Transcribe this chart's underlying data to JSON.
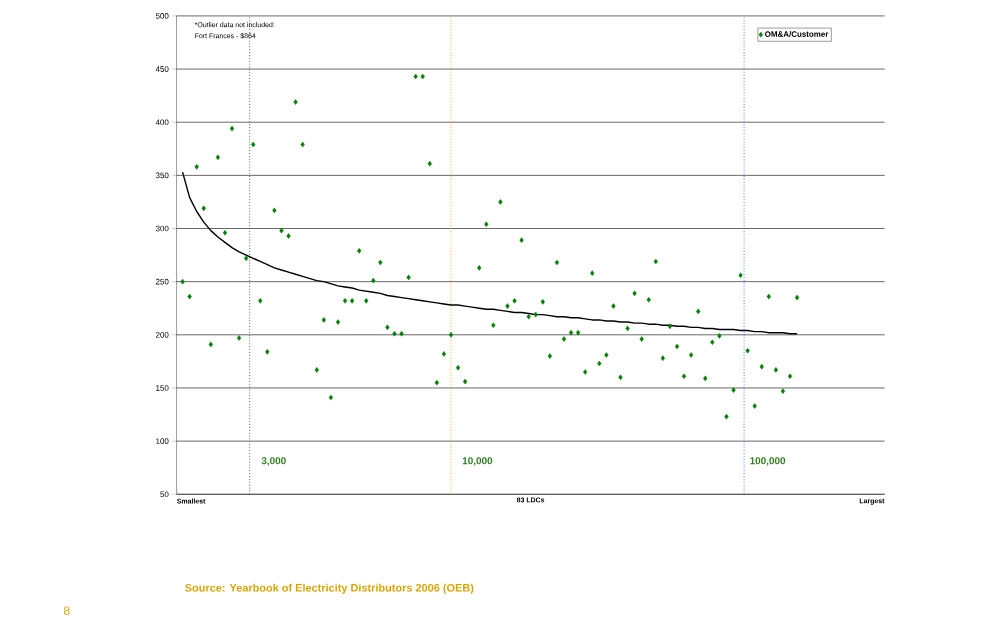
{
  "chart_data": {
    "type": "scatter",
    "categories": [
      null,
      null,
      null,
      null,
      null,
      null,
      null,
      null,
      null,
      null,
      null,
      null,
      null,
      null,
      null,
      null,
      null,
      null,
      null,
      null,
      null,
      null,
      null,
      null,
      null,
      null,
      null,
      null,
      null,
      null,
      null,
      null,
      null,
      null,
      null,
      null,
      null,
      null,
      null,
      null,
      null,
      null,
      null,
      null,
      null,
      null,
      null,
      null,
      null,
      null,
      null,
      null,
      null,
      null,
      null,
      null,
      null,
      null,
      null,
      null,
      null,
      null,
      null,
      null,
      null,
      null,
      null,
      null,
      null,
      null,
      null,
      null,
      null,
      null,
      null,
      null,
      null,
      null,
      null,
      null,
      null,
      null,
      null,
      null,
      null,
      null,
      null,
      null
    ],
    "series": [
      {
        "name": "OM&A/Customer",
        "color": "#008000",
        "marker": "diamond",
        "values": [
          250,
          236,
          358,
          319,
          191,
          367,
          296,
          394,
          197,
          272,
          379,
          232,
          184,
          317,
          298,
          293,
          419,
          379,
          null,
          167,
          214,
          141,
          212,
          232,
          232,
          279,
          232,
          251,
          268,
          207,
          201,
          201,
          254,
          443,
          443,
          361,
          155,
          182,
          200,
          169,
          156,
          null,
          263,
          304,
          209,
          325,
          227,
          232,
          289,
          217,
          219,
          231,
          180,
          268,
          196,
          202,
          202,
          165,
          258,
          173,
          181,
          227,
          160,
          206,
          239,
          196,
          233,
          269,
          178,
          208,
          189,
          161,
          181,
          222,
          159,
          193,
          199,
          123,
          148,
          256,
          185,
          133,
          170,
          236,
          167,
          147,
          161,
          235
        ]
      },
      {
        "type": "line",
        "color": "#000000",
        "marker": "none",
        "values": [
          353,
          329,
          316,
          306,
          298,
          292,
          287,
          282,
          278,
          275,
          272,
          269,
          266,
          263,
          261,
          259,
          257,
          255,
          253,
          251,
          250,
          248,
          246,
          245,
          244,
          242,
          241,
          240,
          239,
          237,
          236,
          235,
          234,
          233,
          232,
          231,
          230,
          229,
          228,
          228,
          227,
          226,
          225,
          224,
          224,
          223,
          222,
          221,
          221,
          220,
          219,
          219,
          218,
          217,
          217,
          216,
          216,
          215,
          214,
          214,
          213,
          213,
          212,
          212,
          211,
          211,
          210,
          210,
          209,
          209,
          208,
          208,
          207,
          207,
          206,
          206,
          205,
          205,
          205,
          204,
          204,
          203,
          203,
          202,
          202,
          202,
          201,
          201
        ]
      }
    ],
    "xlabel": "83 LDCs",
    "ylim": [
      50,
      500
    ],
    "yticks": [
      50,
      100,
      150,
      200,
      250,
      300,
      350,
      400,
      450,
      500
    ],
    "grid": "y",
    "legend": "top right",
    "annotations": [
      "*Outlier data not included:",
      "Fort Frances - $864",
      "Smallest",
      "Largest",
      "3,000",
      "10,000",
      "100,000",
      "Source: Yearbook of Electricity Distributors 2006 (OEB)",
      "8"
    ]
  }
}
